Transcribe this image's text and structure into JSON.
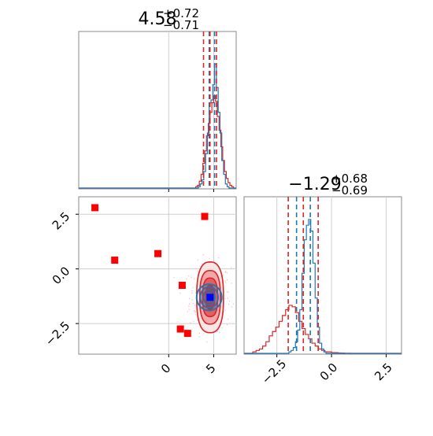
{
  "chart_data": [
    {
      "type": "histogram",
      "panel": "marginal-x",
      "title_value": "4.58",
      "title_plus": "+0.72",
      "title_minus": "−0.71",
      "xlim": [
        -10,
        7.5
      ],
      "grid": true,
      "hist_blue": {
        "color": "#1f77b4",
        "bin_width": 0.2,
        "x_start": 3.1,
        "heights": [
          0.0,
          0.01,
          0.03,
          0.06,
          0.12,
          0.25,
          0.4,
          0.62,
          0.64,
          0.75,
          0.9,
          0.73,
          0.55,
          0.4,
          0.2,
          0.1,
          0.03,
          0.01
        ]
      },
      "hist_red": {
        "color": "#d62728",
        "bin_width": 0.2,
        "x_start": 3.0,
        "heights": [
          0.01,
          0.02,
          0.05,
          0.1,
          0.18,
          0.27,
          0.38,
          0.47,
          0.55,
          0.62,
          0.67,
          0.63,
          0.52,
          0.42,
          0.3,
          0.2,
          0.12,
          0.07,
          0.04,
          0.02,
          0.01
        ]
      },
      "lines_blue": [
        4.5,
        5.1
      ],
      "lines_red": [
        3.87,
        4.59,
        5.31
      ]
    },
    {
      "type": "histogram",
      "panel": "marginal-y",
      "title_value": "−1.29",
      "title_plus": "+0.68",
      "title_minus": "−0.69",
      "xlim": [
        -4,
        3.2
      ],
      "xticks": [
        "−2.5",
        "0.0",
        "2.5"
      ],
      "grid": true,
      "hist_blue": {
        "color": "#1f77b4",
        "bin_width": 0.1,
        "x_start": -1.95,
        "heights": [
          0.01,
          0.02,
          0.04,
          0.08,
          0.16,
          0.3,
          0.55,
          0.78,
          0.88,
          0.92,
          0.84,
          0.62,
          0.38,
          0.18,
          0.07,
          0.03,
          0.01
        ]
      },
      "hist_red": {
        "color": "#d62728",
        "bin_width": 0.15,
        "x_start": -3.6,
        "heights": [
          0.01,
          0.02,
          0.03,
          0.05,
          0.08,
          0.12,
          0.15,
          0.18,
          0.22,
          0.26,
          0.3,
          0.33,
          0.32,
          0.28,
          0.22,
          0.17,
          0.13,
          0.1,
          0.07,
          0.05,
          0.03,
          0.02,
          0.01,
          0.01,
          0.005,
          0.005,
          0.003,
          0.002,
          0.001,
          0.001
        ]
      },
      "lines_blue": [
        -1.6,
        -0.97
      ],
      "lines_red": [
        -1.98,
        -1.29,
        -0.61
      ]
    },
    {
      "type": "scatter",
      "panel": "joint",
      "xlim": [
        -10,
        7.5
      ],
      "ylim": [
        -3.9,
        3.3
      ],
      "xticks": [
        "0",
        "5"
      ],
      "yticks": [
        "2.5",
        "0.0",
        "−2.5"
      ],
      "grid": true,
      "red_points": [
        {
          "x": -8.2,
          "y": 2.8
        },
        {
          "x": -6.0,
          "y": 0.4
        },
        {
          "x": -1.2,
          "y": 0.7
        },
        {
          "x": 4.0,
          "y": 2.4
        },
        {
          "x": 1.5,
          "y": -0.75
        },
        {
          "x": 1.3,
          "y": -2.75
        },
        {
          "x": 2.1,
          "y": -2.95
        }
      ],
      "center_point": {
        "x": 4.6,
        "y": -1.3,
        "color": "#0000ff"
      },
      "red_contours": {
        "center": [
          4.6,
          -1.3
        ],
        "sx": [
          0.8,
          1.35,
          1.85,
          2.4
        ],
        "sy": [
          0.55,
          0.9,
          1.25,
          1.65
        ]
      },
      "blue_contours": {
        "center": [
          4.5,
          -1.3
        ],
        "sx": [
          0.35,
          0.7,
          1.1,
          1.55
        ],
        "sy": [
          0.22,
          0.35,
          0.48,
          0.6
        ]
      },
      "colors": {
        "red": "#d62728",
        "red_fill": [
          "#fbe3e3",
          "#f2a3a5",
          "#e25a5d",
          "#d62728"
        ],
        "blue": "#1f77b4",
        "marker_red": "#ff0000"
      }
    }
  ]
}
